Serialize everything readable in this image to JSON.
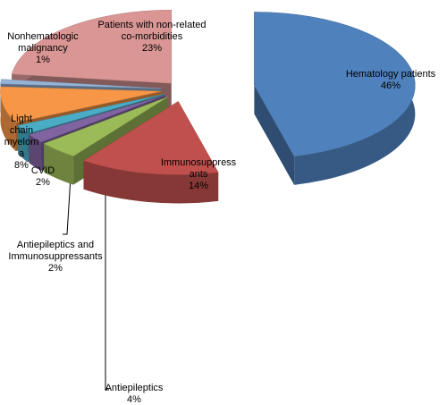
{
  "chart_data": {
    "type": "pie3d",
    "categories": [
      "Hematology patients",
      "Immunosuppressants",
      "Antiepileptics",
      "Antiepileptics and Immunosuppressants",
      "CVID",
      "Light chain myeloma",
      "Nonhematologic malignancy",
      "Patients with non-related co-morbidities"
    ],
    "values": [
      46,
      14,
      4,
      2,
      2,
      8,
      1,
      23
    ],
    "value_labels": [
      "46%",
      "14%",
      "4%",
      "2%",
      "2%",
      "8%",
      "1%",
      "23%"
    ],
    "colors": [
      "#4f81bd",
      "#c0504d",
      "#9bbb59",
      "#8064a2",
      "#4bacc6",
      "#f79646",
      "#95b3d7",
      "#d99694"
    ]
  }
}
